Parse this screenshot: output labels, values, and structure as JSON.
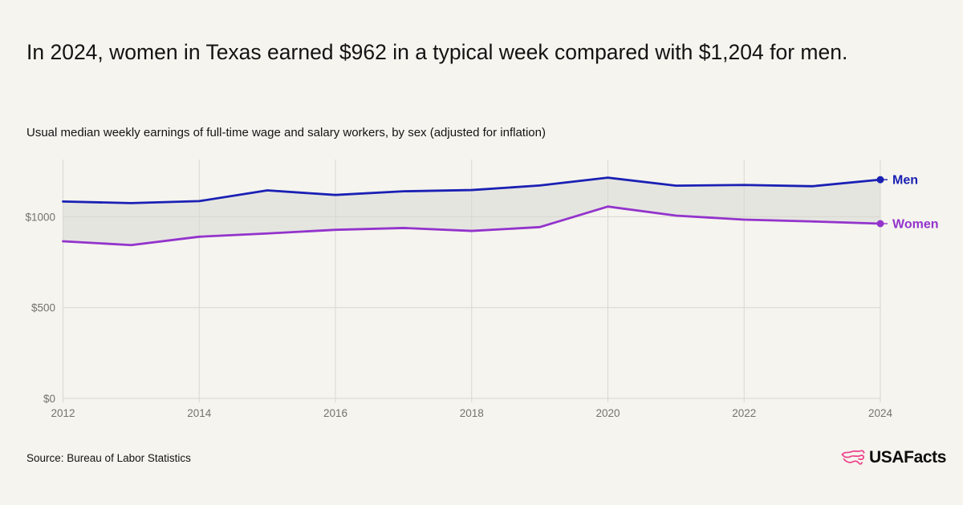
{
  "header": {
    "title": "In 2024, women in Texas earned $962 in a typical week compared with $1,204 for men.",
    "subtitle": "Usual median weekly earnings of full-time wage and salary workers, by sex (adjusted for inflation)"
  },
  "chart_data": {
    "type": "line",
    "title": "Usual median weekly earnings of full-time wage and salary workers, by sex (adjusted for inflation)",
    "x": [
      2012,
      2013,
      2014,
      2015,
      2016,
      2017,
      2018,
      2019,
      2020,
      2021,
      2022,
      2023,
      2024
    ],
    "series": [
      {
        "name": "Men",
        "color": "#1a20b4",
        "values": [
          1084,
          1075,
          1086,
          1145,
          1120,
          1140,
          1147,
          1172,
          1215,
          1171,
          1175,
          1168,
          1204
        ]
      },
      {
        "name": "Women",
        "color": "#9333cc",
        "values": [
          865,
          844,
          890,
          908,
          928,
          938,
          922,
          943,
          1056,
          1006,
          984,
          974,
          962
        ]
      }
    ],
    "xticks": [
      "2012",
      "2014",
      "2016",
      "2018",
      "2020",
      "2022",
      "2024"
    ],
    "yticks": [
      {
        "value": 0,
        "label": "$0"
      },
      {
        "value": 500,
        "label": "$500"
      },
      {
        "value": 1000,
        "label": "$1000"
      }
    ],
    "ylim": [
      0,
      1315
    ],
    "grid": true,
    "legend_position": "end-labels-right",
    "band_between_series": true,
    "highlight_values": {
      "women_2024": "$962",
      "men_2024": "$1,204"
    }
  },
  "colors": {
    "background": "#f5f4ee",
    "band": "#e5e5e0",
    "grid": "#d8d7d1",
    "axis_text": "#73736d",
    "logo_pink": "#ed3e8a",
    "text": "#131313"
  },
  "footer": {
    "source": "Source: Bureau of Labor Statistics",
    "logo_text": "USAFacts"
  }
}
